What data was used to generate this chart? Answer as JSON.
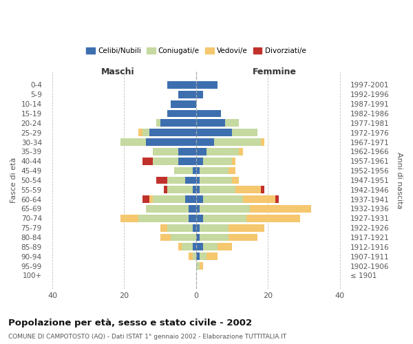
{
  "age_groups": [
    "0-4",
    "5-9",
    "10-14",
    "15-19",
    "20-24",
    "25-29",
    "30-34",
    "35-39",
    "40-44",
    "45-49",
    "50-54",
    "55-59",
    "60-64",
    "65-69",
    "70-74",
    "75-79",
    "80-84",
    "85-89",
    "90-94",
    "95-99",
    "100+"
  ],
  "birth_years": [
    "1997-2001",
    "1992-1996",
    "1987-1991",
    "1982-1986",
    "1977-1981",
    "1972-1976",
    "1967-1971",
    "1962-1966",
    "1957-1961",
    "1952-1956",
    "1947-1951",
    "1942-1946",
    "1937-1941",
    "1932-1936",
    "1927-1931",
    "1922-1926",
    "1917-1921",
    "1912-1916",
    "1907-1911",
    "1902-1906",
    "≤ 1901"
  ],
  "males": {
    "celibi": [
      8,
      5,
      7,
      8,
      10,
      13,
      14,
      5,
      5,
      1,
      3,
      1,
      3,
      2,
      2,
      1,
      0,
      1,
      0,
      0,
      0
    ],
    "coniugati": [
      0,
      0,
      0,
      0,
      1,
      2,
      7,
      7,
      7,
      5,
      5,
      7,
      9,
      12,
      14,
      7,
      7,
      3,
      1,
      0,
      0
    ],
    "vedovi": [
      0,
      0,
      0,
      0,
      0,
      1,
      0,
      0,
      0,
      0,
      0,
      0,
      1,
      0,
      5,
      2,
      3,
      1,
      1,
      0,
      0
    ],
    "divorziati": [
      0,
      0,
      0,
      0,
      0,
      0,
      0,
      0,
      3,
      0,
      3,
      1,
      2,
      0,
      0,
      0,
      0,
      0,
      0,
      0,
      0
    ]
  },
  "females": {
    "nubili": [
      6,
      2,
      0,
      7,
      8,
      10,
      5,
      3,
      2,
      1,
      1,
      1,
      2,
      1,
      2,
      1,
      1,
      2,
      1,
      0,
      0
    ],
    "coniugate": [
      0,
      0,
      0,
      0,
      4,
      7,
      13,
      9,
      8,
      8,
      9,
      10,
      11,
      14,
      12,
      8,
      8,
      4,
      2,
      1,
      0
    ],
    "vedove": [
      0,
      0,
      0,
      0,
      0,
      0,
      1,
      1,
      1,
      2,
      2,
      7,
      9,
      17,
      15,
      10,
      8,
      4,
      3,
      1,
      0
    ],
    "divorziate": [
      0,
      0,
      0,
      0,
      0,
      0,
      0,
      0,
      0,
      0,
      0,
      1,
      1,
      0,
      0,
      0,
      0,
      0,
      0,
      0,
      0
    ]
  },
  "colors": {
    "celibi": "#3d6faf",
    "coniugati": "#c5d9a0",
    "vedovi": "#f5c76e",
    "divorziati": "#c0312b"
  },
  "xlim": 42,
  "title": "Popolazione per età, sesso e stato civile - 2002",
  "subtitle": "COMUNE DI CAMPOTOSTO (AQ) - Dati ISTAT 1° gennaio 2002 - Elaborazione TUTTITALIA.IT",
  "ylabel_left": "Fasce di età",
  "ylabel_right": "Anni di nascita",
  "xlabel_left": "Maschi",
  "xlabel_right": "Femmine",
  "legend_labels": [
    "Celibi/Nubili",
    "Coniugati/e",
    "Vedovi/e",
    "Divorziati/e"
  ],
  "bg_color": "#ffffff",
  "grid_color": "#bbbbbb"
}
